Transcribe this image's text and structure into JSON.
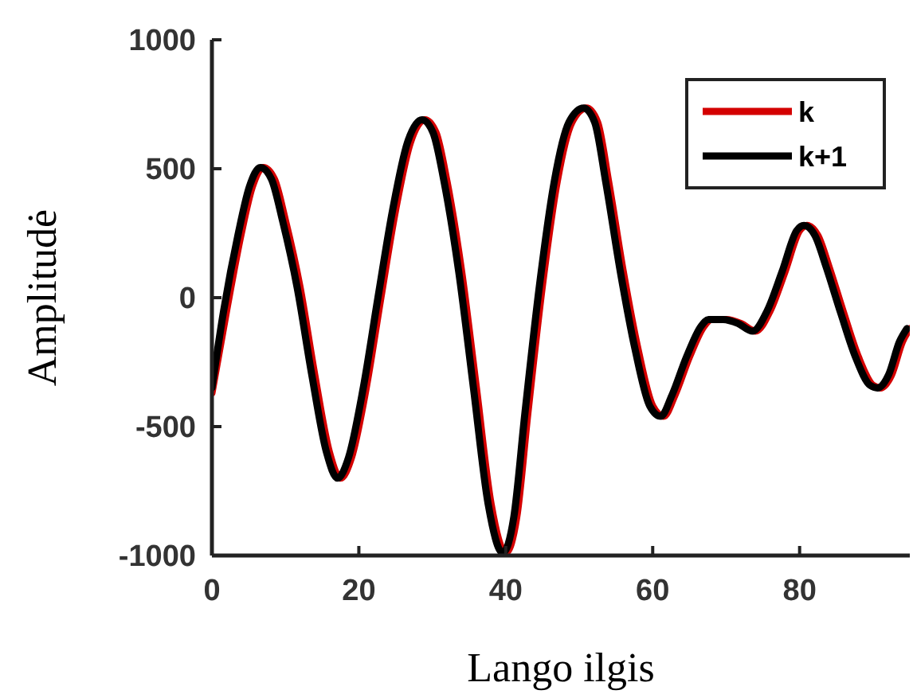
{
  "chart_data": {
    "type": "line",
    "xlabel": "Lango ilgis",
    "ylabel": "Amplitudė",
    "xlim": [
      0,
      95
    ],
    "xticks": [
      0,
      20,
      40,
      60,
      80
    ],
    "ylim": [
      -1000,
      1000
    ],
    "yticks": [
      -1000,
      -500,
      0,
      500,
      1000
    ],
    "grid": false,
    "legend": "top right",
    "marker": "none",
    "line_style": "solid",
    "series": [
      {
        "name": "k",
        "color": "#d40000",
        "x": [
          0,
          2,
          4,
          5.5,
          7,
          8.5,
          10,
          12,
          14,
          16,
          17.5,
          19,
          21,
          23,
          25,
          27,
          29,
          30.5,
          32,
          34,
          36,
          38,
          40,
          41.5,
          43,
          45,
          47,
          49,
          51,
          52.5,
          54,
          56,
          58,
          60,
          61.5,
          63,
          65,
          67,
          68,
          70,
          72,
          74,
          76,
          78,
          80,
          81,
          82.5,
          84,
          86,
          88,
          90,
          91,
          92.5,
          94,
          95
        ],
        "values": [
          -370,
          -50,
          250,
          430,
          505,
          460,
          300,
          40,
          -300,
          -600,
          -700,
          -620,
          -350,
          0,
          340,
          600,
          690,
          640,
          450,
          100,
          -350,
          -800,
          -990,
          -850,
          -450,
          50,
          450,
          680,
          735,
          680,
          450,
          100,
          -200,
          -420,
          -460,
          -380,
          -230,
          -110,
          -85,
          -85,
          -100,
          -130,
          -50,
          100,
          260,
          280,
          240,
          120,
          -60,
          -230,
          -340,
          -350,
          -300,
          -170,
          -120
        ]
      },
      {
        "name": "k+1",
        "color": "#000000",
        "x": [
          0,
          1.6,
          3.6,
          5.1,
          6.6,
          8.1,
          9.6,
          11.6,
          13.6,
          15.6,
          17.1,
          18.6,
          20.6,
          22.6,
          24.6,
          26.6,
          28.6,
          30.1,
          31.6,
          33.6,
          35.6,
          37.6,
          39.6,
          41.1,
          42.6,
          44.6,
          46.6,
          48.6,
          50.6,
          52.1,
          53.6,
          55.6,
          57.6,
          59.6,
          61.1,
          62.6,
          64.6,
          66.6,
          67.6,
          69.6,
          71.6,
          73.6,
          75.6,
          77.6,
          79.6,
          80.6,
          82.1,
          83.6,
          85.6,
          87.6,
          89.6,
          90.6,
          92.1,
          93.6,
          94.6
        ],
        "values": [
          -350,
          -50,
          250,
          430,
          505,
          460,
          300,
          40,
          -300,
          -600,
          -700,
          -620,
          -350,
          0,
          340,
          600,
          690,
          640,
          450,
          100,
          -350,
          -800,
          -990,
          -850,
          -450,
          50,
          450,
          680,
          735,
          680,
          450,
          100,
          -200,
          -420,
          -460,
          -380,
          -230,
          -110,
          -85,
          -85,
          -100,
          -130,
          -50,
          100,
          260,
          280,
          240,
          120,
          -60,
          -230,
          -340,
          -350,
          -300,
          -170,
          -120
        ]
      }
    ]
  }
}
